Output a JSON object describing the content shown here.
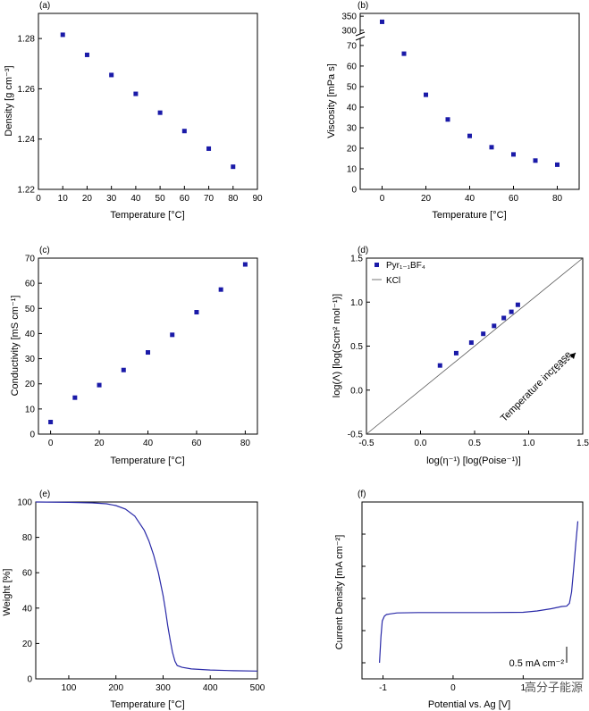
{
  "figure": {
    "watermark": "高分子能源"
  },
  "chart_data": [
    {
      "id": "a",
      "panel_label": "(a)",
      "type": "scatter",
      "xlabel": "Temperature [°C]",
      "ylabel": "Density [g cm⁻³]",
      "xlim": [
        0,
        90
      ],
      "ylim": [
        1.22,
        1.29
      ],
      "xticks": [
        0,
        10,
        20,
        30,
        40,
        50,
        60,
        70,
        80,
        90
      ],
      "yticks": [
        1.22,
        1.24,
        1.26,
        1.28
      ],
      "ytick_labels": [
        "1.22",
        "1.24",
        "1.26",
        "1.28"
      ],
      "x": [
        10,
        20,
        30,
        40,
        50,
        60,
        70,
        80
      ],
      "y": [
        1.2815,
        1.2735,
        1.2655,
        1.258,
        1.2505,
        1.2432,
        1.2362,
        1.229
      ]
    },
    {
      "id": "b",
      "panel_label": "(b)",
      "type": "scatter",
      "xlabel": "Temperature [°C]",
      "ylabel": "Viscosity [mPa s]",
      "xlim": [
        -10,
        90
      ],
      "xticks": [
        0,
        20,
        40,
        60,
        80
      ],
      "axis_break": true,
      "lower_segment": {
        "ylim": [
          0,
          73
        ],
        "yticks": [
          0,
          10,
          20,
          30,
          40,
          50,
          60,
          70
        ]
      },
      "upper_segment": {
        "ylim": [
          290,
          360
        ],
        "yticks": [
          300,
          350
        ]
      },
      "x": [
        0,
        10,
        20,
        30,
        40,
        50,
        60,
        70,
        80
      ],
      "y": [
        330,
        66,
        46,
        34,
        26,
        20.5,
        17,
        14,
        12
      ]
    },
    {
      "id": "c",
      "panel_label": "(c)",
      "type": "scatter",
      "xlabel": "Temperature [°C]",
      "ylabel": "Conductivity [mS cm⁻¹]",
      "xlim": [
        -5,
        85
      ],
      "ylim": [
        0,
        70
      ],
      "xticks": [
        0,
        20,
        40,
        60,
        80
      ],
      "yticks": [
        0,
        10,
        20,
        30,
        40,
        50,
        60,
        70
      ],
      "x": [
        0,
        10,
        20,
        30,
        40,
        50,
        60,
        70,
        80
      ],
      "y": [
        4.8,
        14.5,
        19.5,
        25.5,
        32.5,
        39.5,
        48.5,
        57.5,
        67.5
      ]
    },
    {
      "id": "d",
      "panel_label": "(d)",
      "type": "scatter",
      "xlabel": "log(η⁻¹) [log(Poise⁻¹)]",
      "ylabel": "log(Λ) [log(Scm² mol⁻¹)]",
      "xlim": [
        -0.5,
        1.5
      ],
      "ylim": [
        -0.5,
        1.5
      ],
      "xticks": [
        -0.5,
        0.0,
        0.5,
        1.0,
        1.5
      ],
      "yticks": [
        -0.5,
        0.0,
        0.5,
        1.0,
        1.5
      ],
      "tick_labels": [
        "-0.5",
        "0.0",
        "0.5",
        "1.0",
        "1.5"
      ],
      "series": [
        {
          "name": "Pyr₁₋₁BF₄",
          "x": [
            0.18,
            0.33,
            0.47,
            0.58,
            0.68,
            0.77,
            0.84,
            0.9
          ],
          "y": [
            0.28,
            0.42,
            0.54,
            0.64,
            0.73,
            0.82,
            0.89,
            0.97
          ]
        },
        {
          "name": "KCl",
          "x": [
            -0.5,
            1.5
          ],
          "y": [
            -0.5,
            1.5
          ]
        }
      ],
      "annotation": "Temperature increase"
    },
    {
      "id": "e",
      "panel_label": "(e)",
      "type": "line",
      "xlabel": "Temperature [°C]",
      "ylabel": "Weight [%]",
      "xlim": [
        30,
        500
      ],
      "ylim": [
        0,
        100
      ],
      "xticks": [
        100,
        200,
        300,
        400,
        500
      ],
      "yticks": [
        0,
        20,
        40,
        60,
        80,
        100
      ],
      "x": [
        30,
        100,
        150,
        180,
        200,
        220,
        240,
        260,
        270,
        280,
        290,
        300,
        305,
        310,
        315,
        320,
        325,
        330,
        340,
        360,
        400,
        450,
        500
      ],
      "y": [
        100,
        99.8,
        99.5,
        99,
        98,
        96,
        92,
        84,
        78,
        70,
        60,
        47,
        39,
        30,
        22,
        15,
        10,
        7.5,
        6.5,
        5.6,
        5,
        4.6,
        4.4
      ]
    },
    {
      "id": "f",
      "panel_label": "(f)",
      "type": "line",
      "xlabel": "Potential vs. Ag [V]",
      "ylabel": "Current Density [mA cm⁻²]",
      "xlim": [
        -1.3,
        1.85
      ],
      "ylim": [
        -0.5,
        5.0
      ],
      "xticks": [
        -1,
        0,
        1
      ],
      "scale_bar_label": "0.5 mA cm⁻²",
      "scale_bar_value": 0.5,
      "x": [
        -1.05,
        -1.03,
        -1.01,
        -0.98,
        -0.95,
        -0.9,
        -0.8,
        -0.5,
        0,
        0.5,
        1.0,
        1.2,
        1.4,
        1.55,
        1.62,
        1.66,
        1.69,
        1.72,
        1.75,
        1.78
      ],
      "y": [
        0.0,
        0.8,
        1.3,
        1.45,
        1.5,
        1.52,
        1.55,
        1.56,
        1.56,
        1.56,
        1.57,
        1.61,
        1.68,
        1.75,
        1.76,
        1.85,
        2.2,
        2.9,
        3.7,
        4.4
      ]
    }
  ]
}
